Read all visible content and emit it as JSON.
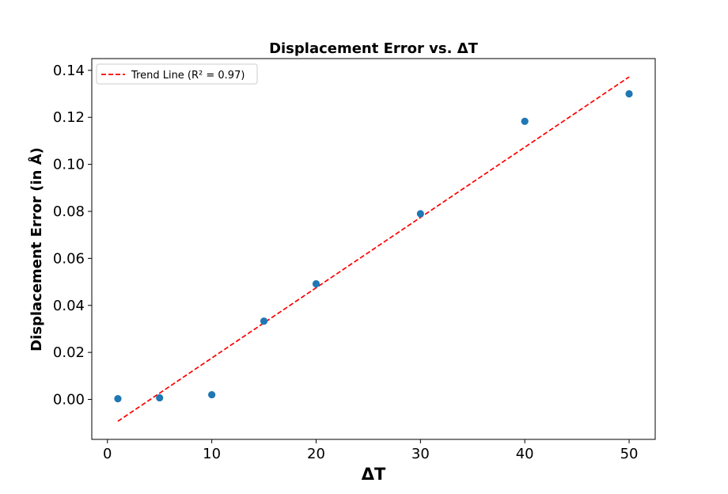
{
  "chart_data": {
    "type": "scatter",
    "title": "Displacement Error vs. ΔT",
    "xlabel": "ΔT",
    "ylabel": "Displacement Error (in Å)",
    "xlim": [
      -1.5,
      52.5
    ],
    "ylim": [
      -0.017,
      0.145
    ],
    "xticks": [
      0,
      10,
      20,
      30,
      40,
      50
    ],
    "xtick_labels": [
      "0",
      "10",
      "20",
      "30",
      "40",
      "50"
    ],
    "yticks": [
      0.0,
      0.02,
      0.04,
      0.06,
      0.08,
      0.1,
      0.12,
      0.14
    ],
    "ytick_labels": [
      "0.00",
      "0.02",
      "0.04",
      "0.06",
      "0.08",
      "0.10",
      "0.12",
      "0.14"
    ],
    "grid": false,
    "legend_position": "top-left",
    "series": [
      {
        "type": "scatter",
        "color": "#1f77b4",
        "x": [
          1,
          5,
          10,
          15,
          20,
          30,
          40,
          50
        ],
        "y": [
          0.0003,
          0.0007,
          0.002,
          0.0333,
          0.0492,
          0.079,
          0.1183,
          0.13
        ]
      },
      {
        "type": "line",
        "name": "Trend Line (R² = 0.97)",
        "style": "dashed",
        "color": "#ff0000",
        "x": [
          1,
          50
        ],
        "y": [
          -0.0093,
          0.1372
        ]
      }
    ]
  }
}
